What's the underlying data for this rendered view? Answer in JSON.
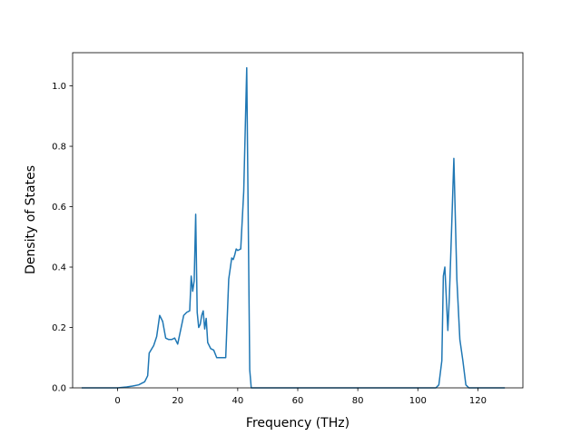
{
  "chart_data": {
    "type": "line",
    "title": "",
    "xlabel": "Frequency (THz)",
    "ylabel": "Density of States",
    "xlim": [
      -15,
      135
    ],
    "ylim": [
      0,
      1.11
    ],
    "xticks": [
      0,
      20,
      40,
      60,
      80,
      100,
      120
    ],
    "xtick_labels": [
      "0",
      "20",
      "40",
      "60",
      "80",
      "100",
      "120"
    ],
    "yticks": [
      0.0,
      0.2,
      0.4,
      0.6,
      0.8,
      1.0
    ],
    "ytick_labels": [
      "0.0",
      "0.2",
      "0.4",
      "0.6",
      "0.8",
      "1.0"
    ],
    "grid": false,
    "legend": "none",
    "line_color": "#1f77b4",
    "series": [
      {
        "x": [
          -12,
          0,
          3,
          5,
          7,
          9,
          10,
          10.5,
          12,
          13,
          14,
          15,
          16,
          17,
          18,
          19,
          20,
          22,
          23,
          24,
          24.5,
          25,
          25.5,
          26,
          26.5,
          27,
          27.5,
          28,
          28.5,
          29,
          29.5,
          30,
          31,
          32,
          33,
          34,
          35,
          36,
          37,
          38,
          38.5,
          39,
          39.5,
          40,
          41,
          42,
          43,
          44,
          44.5,
          45,
          46,
          50,
          60,
          80,
          100,
          106,
          107,
          108,
          108.5,
          109,
          110,
          110.5,
          111,
          112,
          113,
          114,
          115,
          116,
          117,
          118,
          120,
          129
        ],
        "y": [
          0.0,
          0.0,
          0.003,
          0.006,
          0.01,
          0.02,
          0.04,
          0.115,
          0.14,
          0.17,
          0.24,
          0.22,
          0.165,
          0.16,
          0.16,
          0.165,
          0.145,
          0.24,
          0.25,
          0.255,
          0.37,
          0.32,
          0.355,
          0.575,
          0.25,
          0.2,
          0.21,
          0.24,
          0.255,
          0.195,
          0.23,
          0.15,
          0.13,
          0.125,
          0.1,
          0.1,
          0.1,
          0.1,
          0.36,
          0.43,
          0.425,
          0.44,
          0.46,
          0.455,
          0.46,
          0.65,
          1.06,
          0.06,
          0.0,
          0.0,
          0.0,
          0.0,
          0.0,
          0.0,
          0.0,
          0.0,
          0.01,
          0.09,
          0.37,
          0.4,
          0.19,
          0.3,
          0.45,
          0.76,
          0.36,
          0.16,
          0.09,
          0.01,
          0.0,
          0.0,
          0.0,
          0.0
        ]
      }
    ]
  }
}
